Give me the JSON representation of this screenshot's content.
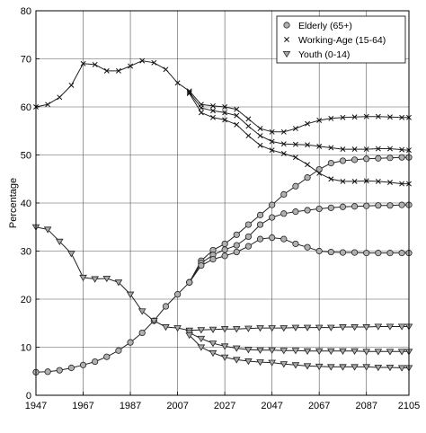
{
  "chart_data": {
    "type": "line",
    "xlabel": "",
    "ylabel": "Percentage",
    "xlim": [
      1947,
      2105
    ],
    "ylim": [
      0,
      80
    ],
    "xticks": [
      "1947",
      "1967",
      "1987",
      "2007",
      "2027",
      "2047",
      "2067",
      "2087",
      "2105"
    ],
    "xtick_values": [
      1947,
      1967,
      1987,
      2007,
      2027,
      2047,
      2067,
      2087,
      2105
    ],
    "yticks": [
      "0",
      "10",
      "20",
      "30",
      "40",
      "50",
      "60",
      "70",
      "80"
    ],
    "ytick_values": [
      0,
      10,
      20,
      30,
      40,
      50,
      60,
      70,
      80
    ],
    "grid": true,
    "legend": {
      "placement": "top-right",
      "entries": [
        {
          "label": "Elderly (65+)",
          "marker": "circle"
        },
        {
          "label": "Working-Age (15-64)",
          "marker": "x"
        },
        {
          "label": "Youth (0-14)",
          "marker": "triangle-down"
        }
      ]
    },
    "series": [
      {
        "group": "Elderly (65+)",
        "marker": "circle",
        "x": [
          1947,
          1952,
          1957,
          1962,
          1967,
          1972,
          1977,
          1982,
          1987,
          1992,
          1997,
          2002,
          2007,
          2012,
          2017,
          2022,
          2027,
          2032,
          2037,
          2042,
          2047,
          2052,
          2057,
          2062,
          2067,
          2072,
          2077,
          2082,
          2087,
          2092,
          2097,
          2102,
          2105
        ],
        "y": [
          4.8,
          4.9,
          5.2,
          5.7,
          6.3,
          7.0,
          8.0,
          9.3,
          11.0,
          13.0,
          15.5,
          18.5,
          21.0,
          23.5,
          28.0,
          30.2,
          31.5,
          33.4,
          35.5,
          37.5,
          39.6,
          41.8,
          43.5,
          45.3,
          47.0,
          48.3,
          48.8,
          49.0,
          49.2,
          49.3,
          49.4,
          49.5,
          49.5
        ]
      },
      {
        "group": "Elderly (65+)",
        "marker": "circle",
        "x": [
          2012,
          2017,
          2022,
          2027,
          2032,
          2037,
          2042,
          2047,
          2052,
          2057,
          2062,
          2067,
          2072,
          2077,
          2082,
          2087,
          2092,
          2097,
          2102,
          2105
        ],
        "y": [
          23.5,
          27.5,
          29.2,
          30.3,
          31.2,
          33.0,
          35.5,
          37.0,
          37.8,
          38.2,
          38.5,
          38.8,
          39.0,
          39.2,
          39.3,
          39.4,
          39.5,
          39.5,
          39.6,
          39.6
        ]
      },
      {
        "group": "Elderly (65+)",
        "marker": "circle",
        "x": [
          2012,
          2017,
          2022,
          2027,
          2032,
          2037,
          2042,
          2047,
          2052,
          2057,
          2062,
          2067,
          2072,
          2077,
          2082,
          2087,
          2092,
          2097,
          2102,
          2105
        ],
        "y": [
          23.5,
          27.0,
          28.3,
          29.0,
          29.8,
          31.0,
          32.5,
          32.8,
          32.5,
          31.5,
          30.8,
          30.0,
          29.8,
          29.7,
          29.7,
          29.6,
          29.6,
          29.6,
          29.6,
          29.6
        ]
      },
      {
        "group": "Working-Age (15-64)",
        "marker": "x",
        "x": [
          1947,
          1952,
          1957,
          1962,
          1967,
          1972,
          1977,
          1982,
          1987,
          1992,
          1997,
          2002,
          2007,
          2012,
          2017,
          2022,
          2027,
          2032,
          2037,
          2042,
          2047,
          2052,
          2057,
          2062,
          2067,
          2072,
          2077,
          2082,
          2087,
          2092,
          2097,
          2102,
          2105
        ],
        "y": [
          60.0,
          60.5,
          62.0,
          64.5,
          69.0,
          68.8,
          67.5,
          67.5,
          68.5,
          69.6,
          69.2,
          67.8,
          65.0,
          63.3,
          60.5,
          60.2,
          60.0,
          59.5,
          57.5,
          55.5,
          54.8,
          54.8,
          55.5,
          56.5,
          57.2,
          57.6,
          57.8,
          57.9,
          58.0,
          58.0,
          57.9,
          57.8,
          57.8
        ]
      },
      {
        "group": "Working-Age (15-64)",
        "marker": "x",
        "x": [
          2012,
          2017,
          2022,
          2027,
          2032,
          2037,
          2042,
          2047,
          2052,
          2057,
          2062,
          2067,
          2072,
          2077,
          2082,
          2087,
          2092,
          2097,
          2102,
          2105
        ],
        "y": [
          63.0,
          59.8,
          59.2,
          58.8,
          58.2,
          56.0,
          54.0,
          52.8,
          52.3,
          52.2,
          52.1,
          51.8,
          51.5,
          51.2,
          51.2,
          51.2,
          51.3,
          51.3,
          51.1,
          51.0
        ]
      },
      {
        "group": "Working-Age (15-64)",
        "marker": "x",
        "x": [
          2012,
          2017,
          2022,
          2027,
          2032,
          2037,
          2042,
          2047,
          2052,
          2057,
          2062,
          2067,
          2072,
          2077,
          2082,
          2087,
          2092,
          2097,
          2102,
          2105
        ],
        "y": [
          62.8,
          58.8,
          57.8,
          57.3,
          56.3,
          54.0,
          52.0,
          51.0,
          50.3,
          49.5,
          48.0,
          46.2,
          45.0,
          44.5,
          44.5,
          44.6,
          44.5,
          44.3,
          44.0,
          44.0
        ]
      },
      {
        "group": "Youth (0-14)",
        "marker": "triangle-down",
        "x": [
          1947,
          1952,
          1957,
          1962,
          1967,
          1972,
          1977,
          1982,
          1987,
          1992,
          1997,
          2002,
          2007,
          2012,
          2017,
          2022,
          2027,
          2032,
          2037,
          2042,
          2047,
          2052,
          2057,
          2062,
          2067,
          2072,
          2077,
          2082,
          2087,
          2092,
          2097,
          2102,
          2105
        ],
        "y": [
          35.0,
          34.5,
          32.0,
          29.5,
          24.5,
          24.2,
          24.3,
          23.5,
          21.0,
          17.5,
          15.5,
          14.2,
          14.0,
          13.5,
          13.6,
          13.7,
          13.8,
          13.8,
          13.9,
          14.0,
          14.0,
          14.0,
          14.1,
          14.1,
          14.1,
          14.1,
          14.2,
          14.2,
          14.2,
          14.3,
          14.3,
          14.3,
          14.3
        ]
      },
      {
        "group": "Youth (0-14)",
        "marker": "triangle-down",
        "x": [
          2012,
          2017,
          2022,
          2027,
          2032,
          2037,
          2042,
          2047,
          2052,
          2057,
          2062,
          2067,
          2072,
          2077,
          2082,
          2087,
          2092,
          2097,
          2102,
          2105
        ],
        "y": [
          13.0,
          11.8,
          10.8,
          10.2,
          9.8,
          9.5,
          9.4,
          9.4,
          9.3,
          9.3,
          9.2,
          9.2,
          9.2,
          9.2,
          9.2,
          9.1,
          9.1,
          9.1,
          9.1,
          9.1
        ]
      },
      {
        "group": "Youth (0-14)",
        "marker": "triangle-down",
        "x": [
          2012,
          2017,
          2022,
          2027,
          2032,
          2037,
          2042,
          2047,
          2052,
          2057,
          2062,
          2067,
          2072,
          2077,
          2082,
          2087,
          2092,
          2097,
          2102,
          2105
        ],
        "y": [
          12.5,
          10.0,
          8.8,
          7.9,
          7.4,
          7.1,
          6.9,
          6.8,
          6.5,
          6.3,
          6.1,
          6.0,
          5.9,
          5.9,
          5.9,
          5.9,
          5.8,
          5.8,
          5.7,
          5.7
        ]
      }
    ]
  }
}
